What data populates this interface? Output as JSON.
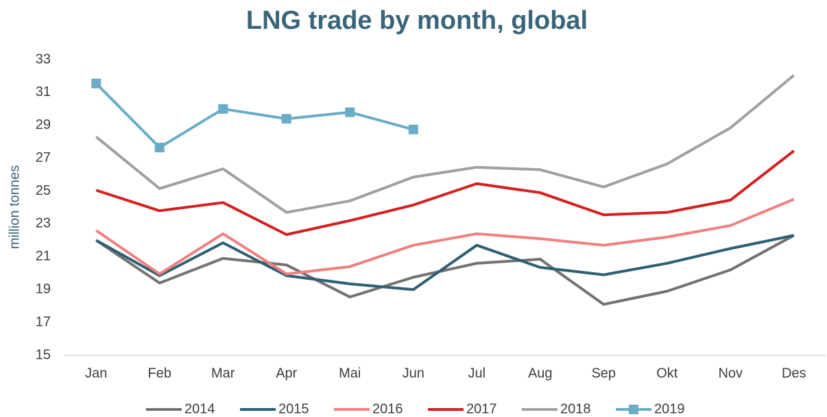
{
  "chart_data": {
    "type": "line",
    "title": "LNG trade by month, global",
    "y_label": "million tonnes",
    "categories": [
      "Jan",
      "Feb",
      "Mar",
      "Apr",
      "Mai",
      "Jun",
      "Jul",
      "Aug",
      "Sep",
      "Okt",
      "Nov",
      "Des"
    ],
    "ylim": [
      15,
      33
    ],
    "yticks": [
      15,
      17,
      19,
      21,
      23,
      25,
      27,
      29,
      31,
      33
    ],
    "legend": "bottom",
    "series": [
      {
        "name": "2014",
        "color": "#767171",
        "values": [
          22.0,
          19.4,
          20.9,
          20.5,
          18.55,
          19.75,
          20.6,
          20.85,
          18.1,
          18.9,
          20.2,
          22.3
        ]
      },
      {
        "name": "2015",
        "color": "#2e5f73",
        "values": [
          22.0,
          19.85,
          21.85,
          19.85,
          19.35,
          19.0,
          21.7,
          20.35,
          19.9,
          20.6,
          21.5,
          22.3
        ]
      },
      {
        "name": "2016",
        "color": "#f08080",
        "values": [
          22.6,
          19.95,
          22.4,
          19.95,
          20.4,
          21.7,
          22.4,
          22.1,
          21.7,
          22.2,
          22.9,
          24.5
        ]
      },
      {
        "name": "2017",
        "color": "#d42020",
        "values": [
          25.05,
          23.8,
          24.3,
          22.35,
          23.2,
          24.15,
          25.45,
          24.9,
          23.55,
          23.7,
          24.45,
          27.45
        ]
      },
      {
        "name": "2018",
        "color": "#a0a0a0",
        "values": [
          28.3,
          25.15,
          26.35,
          23.7,
          24.4,
          25.85,
          26.45,
          26.3,
          25.25,
          26.65,
          28.85,
          32.05
        ]
      },
      {
        "name": "2019",
        "color": "#6aacc8",
        "marker": "square",
        "values": [
          31.55,
          27.65,
          30.0,
          29.4,
          29.8,
          28.75,
          null,
          null,
          null,
          null,
          null,
          null
        ]
      }
    ]
  }
}
